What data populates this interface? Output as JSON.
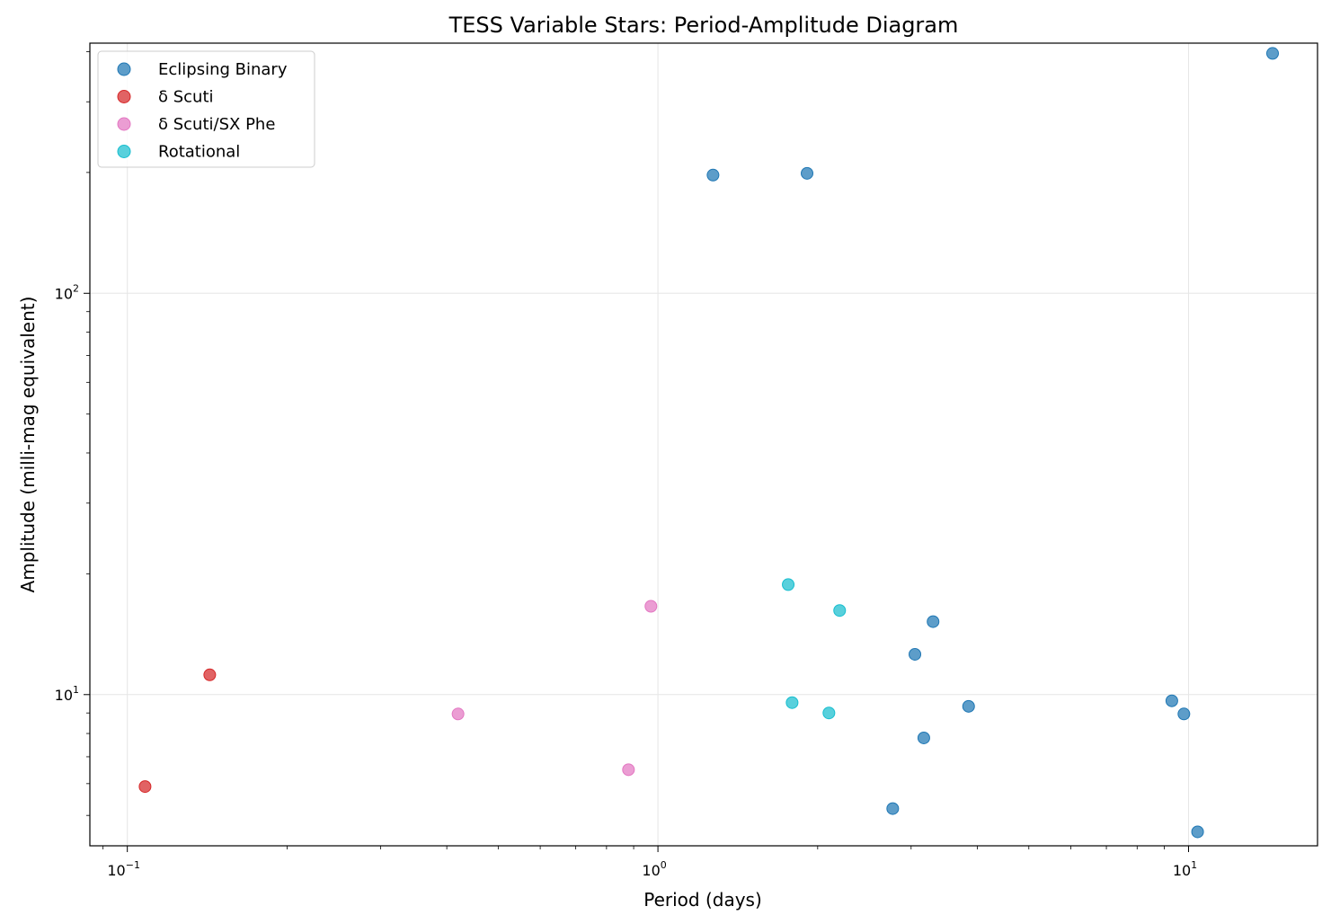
{
  "chart_data": {
    "type": "scatter",
    "title": "TESS Variable Stars: Period-Amplitude Diagram",
    "xlabel": "Period (days)",
    "ylabel": "Amplitude (milli-mag equivalent)",
    "xscale": "log",
    "yscale": "log",
    "xlim": [
      0.085,
      17.5
    ],
    "ylim": [
      4.2,
      420
    ],
    "x_ticks": [
      {
        "value": 0.1,
        "base": "10",
        "exp": "−1"
      },
      {
        "value": 1,
        "base": "10",
        "exp": "0"
      },
      {
        "value": 10,
        "base": "10",
        "exp": "1"
      }
    ],
    "y_ticks": [
      {
        "value": 10,
        "base": "10",
        "exp": "1"
      },
      {
        "value": 100,
        "base": "10",
        "exp": "2"
      }
    ],
    "grid": true,
    "legend_position": "top-left",
    "series": [
      {
        "name": "Eclipsing Binary",
        "color": "#1f77b4",
        "points": [
          {
            "x": 1.27,
            "y": 197
          },
          {
            "x": 1.91,
            "y": 199
          },
          {
            "x": 14.4,
            "y": 396
          },
          {
            "x": 3.3,
            "y": 15.2
          },
          {
            "x": 3.05,
            "y": 12.6
          },
          {
            "x": 3.85,
            "y": 9.35
          },
          {
            "x": 3.17,
            "y": 7.8
          },
          {
            "x": 2.77,
            "y": 5.2
          },
          {
            "x": 9.3,
            "y": 9.65
          },
          {
            "x": 9.8,
            "y": 8.95
          },
          {
            "x": 10.4,
            "y": 4.55
          }
        ]
      },
      {
        "name": "δ Scuti",
        "color": "#d62728",
        "points": [
          {
            "x": 0.143,
            "y": 11.2
          },
          {
            "x": 0.108,
            "y": 5.9
          }
        ]
      },
      {
        "name": "δ Scuti/SX Phe",
        "color": "#e377c2",
        "points": [
          {
            "x": 0.42,
            "y": 8.95
          },
          {
            "x": 0.97,
            "y": 16.6
          },
          {
            "x": 0.88,
            "y": 6.5
          }
        ]
      },
      {
        "name": "Rotational",
        "color": "#17becf",
        "points": [
          {
            "x": 1.76,
            "y": 18.8
          },
          {
            "x": 2.2,
            "y": 16.2
          },
          {
            "x": 1.79,
            "y": 9.55
          },
          {
            "x": 2.1,
            "y": 9.0
          }
        ]
      }
    ]
  }
}
